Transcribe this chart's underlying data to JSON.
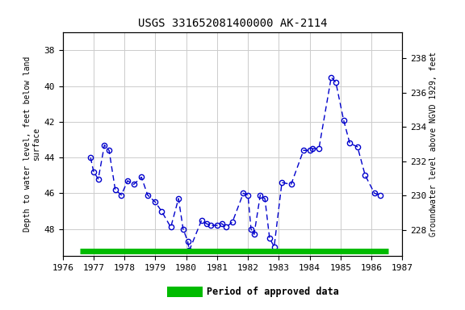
{
  "title": "USGS 331652081400000 AK-2114",
  "ylabel_left": "Depth to water level, feet below land\nsurface",
  "ylabel_right": "Groundwater level above NGVD 1929, feet",
  "xlim": [
    1976,
    1987
  ],
  "ylim_left": [
    49.5,
    37.0
  ],
  "ylim_right": [
    226.5,
    239.5
  ],
  "xticks": [
    1976,
    1977,
    1978,
    1979,
    1980,
    1981,
    1982,
    1983,
    1984,
    1985,
    1986,
    1987
  ],
  "yticks_left": [
    38,
    40,
    42,
    44,
    46,
    48
  ],
  "yticks_right": [
    228,
    230,
    232,
    234,
    236,
    238
  ],
  "data_x": [
    1976.9,
    1977.0,
    1977.15,
    1977.35,
    1977.5,
    1977.7,
    1977.9,
    1978.1,
    1978.3,
    1978.55,
    1978.75,
    1979.0,
    1979.2,
    1979.5,
    1979.75,
    1979.9,
    1980.05,
    1980.1,
    1980.5,
    1980.65,
    1980.8,
    1981.0,
    1981.15,
    1981.3,
    1981.5,
    1981.85,
    1982.0,
    1982.1,
    1982.2,
    1982.4,
    1982.55,
    1982.7,
    1982.85,
    1983.1,
    1983.4,
    1983.8,
    1984.0,
    1984.1,
    1984.3,
    1984.7,
    1984.85,
    1985.1,
    1985.3,
    1985.55,
    1985.8,
    1986.1,
    1986.3
  ],
  "data_y": [
    44.0,
    44.8,
    45.2,
    43.3,
    43.6,
    45.8,
    46.1,
    45.3,
    45.5,
    45.1,
    46.1,
    46.5,
    47.0,
    47.9,
    46.3,
    48.0,
    48.7,
    49.2,
    47.5,
    47.7,
    47.8,
    47.8,
    47.7,
    47.9,
    47.6,
    46.0,
    46.1,
    48.0,
    48.3,
    46.1,
    46.3,
    48.5,
    49.0,
    45.4,
    45.5,
    43.6,
    43.6,
    43.5,
    43.5,
    39.5,
    39.8,
    41.9,
    43.2,
    43.4,
    45.0,
    46.0,
    46.1
  ],
  "legend_color": "#00bb00",
  "line_color": "#0000cc",
  "marker_color": "#0000cc",
  "background_color": "#ffffff",
  "grid_color": "#cccccc",
  "green_bar_xstart": 1976.55,
  "green_bar_xend": 1986.55,
  "title_fontsize": 10
}
